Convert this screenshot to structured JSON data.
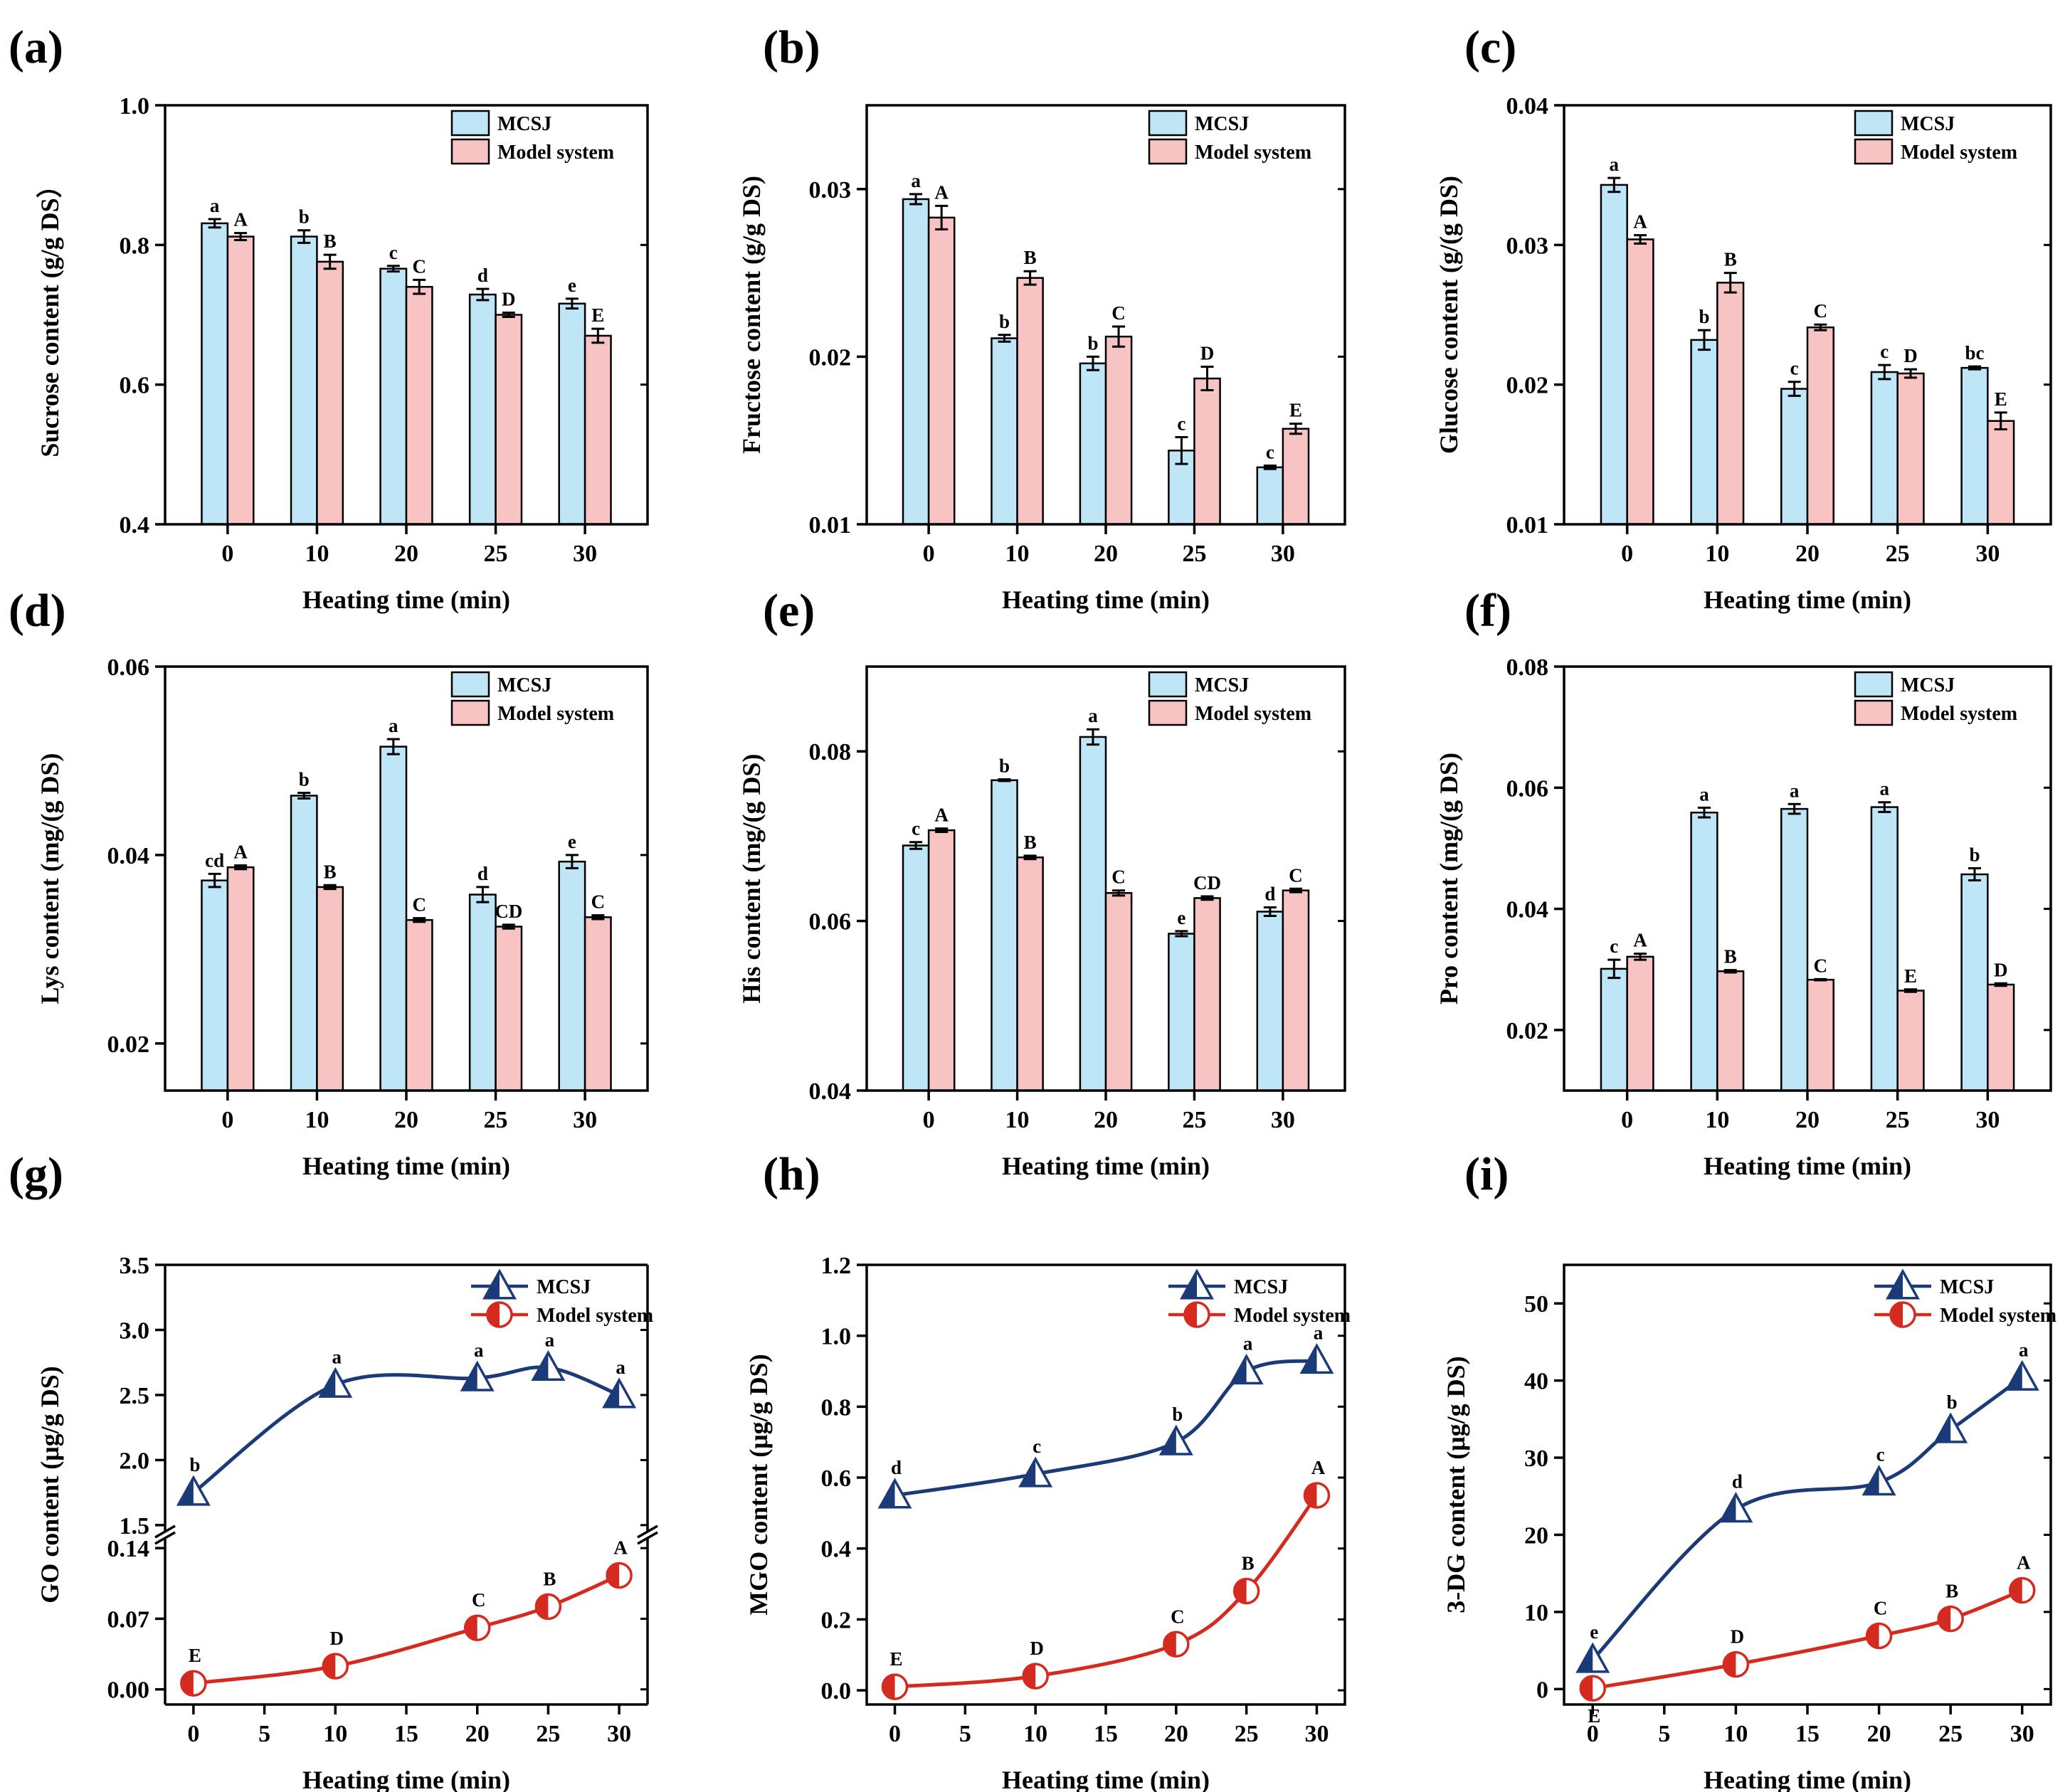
{
  "colors": {
    "mcsj_bar": "#bfe6f7",
    "model_bar": "#f7c3c3",
    "mcsj_line": "#1b3a78",
    "model_line": "#d42a1f"
  },
  "chart_data": [
    {
      "panel": "(a)",
      "type": "bar",
      "categories": [
        "0",
        "10",
        "20",
        "25",
        "30"
      ],
      "ylabel": "Sucrose content (g/g DS）",
      "xlabel": "Heating time (min)",
      "ylim": [
        0.4,
        1.0
      ],
      "yticks": [
        0.4,
        0.6,
        0.8,
        1.0
      ],
      "ytick_labels": [
        "0.4",
        "0.6",
        "0.8",
        "1.0"
      ],
      "legend": [
        "MCSJ",
        "Model system"
      ],
      "series": [
        {
          "name": "MCSJ",
          "values": [
            0.831,
            0.812,
            0.766,
            0.729,
            0.716
          ],
          "errors": [
            0.006,
            0.009,
            0.004,
            0.008,
            0.007
          ],
          "letters": [
            "a",
            "b",
            "c",
            "d",
            "e"
          ]
        },
        {
          "name": "Model system",
          "values": [
            0.812,
            0.776,
            0.74,
            0.7,
            0.67
          ],
          "errors": [
            0.005,
            0.01,
            0.01,
            0.003,
            0.01
          ],
          "letters": [
            "A",
            "B",
            "C",
            "D",
            "E"
          ]
        }
      ]
    },
    {
      "panel": "(b)",
      "type": "bar",
      "categories": [
        "0",
        "10",
        "20",
        "25",
        "30"
      ],
      "ylabel": "Fructose content (g/g DS)",
      "xlabel": "Heating time (min)",
      "ylim": [
        0.01,
        0.035
      ],
      "yticks": [
        0.01,
        0.02,
        0.03
      ],
      "ytick_labels": [
        "0.01",
        "0.02",
        "0.03"
      ],
      "legend": [
        "MCSJ",
        "Model system"
      ],
      "series": [
        {
          "name": "MCSJ",
          "values": [
            0.0294,
            0.0211,
            0.0196,
            0.0144,
            0.0134
          ],
          "errors": [
            0.0003,
            0.0002,
            0.0004,
            0.0008,
            0.0001
          ],
          "letters": [
            "a",
            "b",
            "b",
            "c",
            "c"
          ]
        },
        {
          "name": "Model system",
          "values": [
            0.0283,
            0.0247,
            0.0212,
            0.0187,
            0.0157
          ],
          "errors": [
            0.0007,
            0.0004,
            0.0006,
            0.0007,
            0.0003
          ],
          "letters": [
            "A",
            "B",
            "C",
            "D",
            "E"
          ]
        }
      ]
    },
    {
      "panel": "(c)",
      "type": "bar",
      "categories": [
        "0",
        "10",
        "20",
        "25",
        "30"
      ],
      "ylabel": "Glucose content (g/(g DS)",
      "xlabel": "Heating time (min)",
      "ylim": [
        0.01,
        0.04
      ],
      "yticks": [
        0.01,
        0.02,
        0.03,
        0.04
      ],
      "ytick_labels": [
        "0.01",
        "0.02",
        "0.03",
        "0.04"
      ],
      "legend": [
        "MCSJ",
        "Model system"
      ],
      "series": [
        {
          "name": "MCSJ",
          "values": [
            0.0343,
            0.0232,
            0.0197,
            0.0209,
            0.0212
          ],
          "errors": [
            0.0005,
            0.0007,
            0.0005,
            0.0005,
            0.0001
          ],
          "letters": [
            "a",
            "b",
            "c",
            "c",
            "bc"
          ]
        },
        {
          "name": "Model system",
          "values": [
            0.0304,
            0.0273,
            0.0241,
            0.0208,
            0.0174
          ],
          "errors": [
            0.0003,
            0.0007,
            0.0002,
            0.0003,
            0.0006
          ],
          "letters": [
            "A",
            "B",
            "C",
            "D",
            "E"
          ]
        }
      ]
    },
    {
      "panel": "(d)",
      "type": "bar",
      "categories": [
        "0",
        "10",
        "20",
        "25",
        "30"
      ],
      "ylabel": "Lys content (mg/(g DS)",
      "xlabel": "Heating time (min)",
      "ylim": [
        0.015,
        0.06
      ],
      "yticks": [
        0.02,
        0.04,
        0.06
      ],
      "ytick_labels": [
        "0.02",
        "0.04",
        "0.06"
      ],
      "legend": [
        "MCSJ",
        "Model system"
      ],
      "series": [
        {
          "name": "MCSJ",
          "values": [
            0.0373,
            0.0463,
            0.0515,
            0.0358,
            0.0393
          ],
          "errors": [
            0.0007,
            0.0003,
            0.0008,
            0.0008,
            0.0007
          ],
          "letters": [
            "cd",
            "b",
            "a",
            "d",
            "e"
          ]
        },
        {
          "name": "Model system",
          "values": [
            0.0387,
            0.0366,
            0.0331,
            0.0324,
            0.0334
          ],
          "errors": [
            0.0002,
            0.0002,
            0.0002,
            0.0002,
            0.0002
          ],
          "letters": [
            "A",
            "B",
            "C",
            "CD",
            "C"
          ]
        }
      ]
    },
    {
      "panel": "(e)",
      "type": "bar",
      "categories": [
        "0",
        "10",
        "20",
        "25",
        "30"
      ],
      "ylabel": "His content (mg/(g DS)",
      "xlabel": "Heating time (min)",
      "ylim": [
        0.04,
        0.09
      ],
      "yticks": [
        0.04,
        0.06,
        0.08
      ],
      "ytick_labels": [
        "0.04",
        "0.06",
        "0.08"
      ],
      "legend": [
        "MCSJ",
        "Model system"
      ],
      "series": [
        {
          "name": "MCSJ",
          "values": [
            0.0689,
            0.0766,
            0.0817,
            0.0585,
            0.0611
          ],
          "errors": [
            0.0004,
            0.0001,
            0.0009,
            0.0003,
            0.0005
          ],
          "letters": [
            "c",
            "b",
            "a",
            "e",
            "d"
          ]
        },
        {
          "name": "Model system",
          "values": [
            0.0707,
            0.0675,
            0.0633,
            0.0627,
            0.0636
          ],
          "errors": [
            0.0002,
            0.0002,
            0.0003,
            0.0002,
            0.0002
          ],
          "letters": [
            "A",
            "B",
            "C",
            "CD",
            "C"
          ]
        }
      ]
    },
    {
      "panel": "(f)",
      "type": "bar",
      "categories": [
        "0",
        "10",
        "20",
        "25",
        "30"
      ],
      "ylabel": "Pro content (mg/(g DS)",
      "xlabel": "Heating time (min)",
      "ylim": [
        0.01,
        0.08
      ],
      "yticks": [
        0.02,
        0.04,
        0.06,
        0.08
      ],
      "ytick_labels": [
        "0.02",
        "0.04",
        "0.06",
        "0.08"
      ],
      "legend": [
        "MCSJ",
        "Model system"
      ],
      "series": [
        {
          "name": "MCSJ",
          "values": [
            0.0301,
            0.0559,
            0.0565,
            0.0568,
            0.0457
          ],
          "errors": [
            0.0015,
            0.0008,
            0.0008,
            0.0008,
            0.001
          ],
          "letters": [
            "c",
            "a",
            "a",
            "a",
            "b"
          ]
        },
        {
          "name": "Model system",
          "values": [
            0.0321,
            0.0297,
            0.0283,
            0.0265,
            0.0275
          ],
          "errors": [
            0.0005,
            0.0002,
            0.0001,
            0.0002,
            0.0002
          ],
          "letters": [
            "A",
            "B",
            "C",
            "E",
            "D"
          ]
        }
      ]
    },
    {
      "panel": "(g)",
      "type": "line",
      "ylabel": "GO content (μg/g DS)",
      "xlabel": "Heating time (min)",
      "xlim": [
        -2,
        32
      ],
      "xticks": [
        0,
        5,
        10,
        15,
        20,
        25,
        30
      ],
      "xtick_labels": [
        "0",
        "5",
        "10",
        "15",
        "20",
        "25",
        "30"
      ],
      "broken_axis": true,
      "upper_ylim": [
        1.45,
        3.5
      ],
      "upper_yticks": [
        1.5,
        2.0,
        2.5,
        3.0,
        3.5
      ],
      "upper_ytick_labels": [
        "1.5",
        "2.0",
        "2.5",
        "3.0",
        "3.5"
      ],
      "lower_ylim": [
        -0.015,
        0.15
      ],
      "lower_yticks": [
        0.0,
        0.07,
        0.14
      ],
      "lower_ytick_labels": [
        "0.00",
        "0.07",
        "0.14"
      ],
      "legend": [
        "MCSJ",
        "Model system"
      ],
      "series": [
        {
          "name": "MCSJ",
          "x": [
            0,
            10,
            20,
            25,
            30
          ],
          "values": [
            1.75,
            2.58,
            2.63,
            2.71,
            2.5
          ],
          "letters": [
            "b",
            "a",
            "a",
            "a",
            "a"
          ]
        },
        {
          "name": "Model system",
          "x": [
            0,
            10,
            20,
            25,
            30
          ],
          "values": [
            0.006,
            0.023,
            0.061,
            0.082,
            0.113
          ],
          "letters": [
            "E",
            "D",
            "C",
            "B",
            "A"
          ]
        }
      ]
    },
    {
      "panel": "(h)",
      "type": "line",
      "ylabel": "MGO content  (μg/g DS)",
      "xlabel": "Heating time (min)",
      "xlim": [
        -2,
        32
      ],
      "xticks": [
        0,
        5,
        10,
        15,
        20,
        25,
        30
      ],
      "xtick_labels": [
        "0",
        "5",
        "10",
        "15",
        "20",
        "25",
        "30"
      ],
      "ylim": [
        -0.04,
        1.2
      ],
      "yticks": [
        0,
        0.2,
        0.4,
        0.6,
        0.8,
        1.0,
        1.2
      ],
      "ytick_labels": [
        "0.0",
        "0.2",
        "0.4",
        "0.6",
        "0.8",
        "1.0",
        "1.2"
      ],
      "legend": [
        "MCSJ",
        "Model system"
      ],
      "series": [
        {
          "name": "MCSJ",
          "x": [
            0,
            10,
            20,
            25,
            30
          ],
          "values": [
            0.55,
            0.61,
            0.7,
            0.9,
            0.93
          ],
          "letters": [
            "d",
            "c",
            "b",
            "a",
            "a"
          ]
        },
        {
          "name": "Model system",
          "x": [
            0,
            10,
            20,
            25,
            30
          ],
          "values": [
            0.01,
            0.04,
            0.13,
            0.28,
            0.55
          ],
          "letters": [
            "E",
            "D",
            "C",
            "B",
            "A"
          ]
        }
      ]
    },
    {
      "panel": "(i)",
      "type": "line",
      "ylabel": "3-DG content  (μg/g DS)",
      "xlabel": "Heating time (min)",
      "xlim": [
        -2,
        32
      ],
      "xticks": [
        0,
        5,
        10,
        15,
        20,
        25,
        30
      ],
      "xtick_labels": [
        "0",
        "5",
        "10",
        "15",
        "20",
        "25",
        "30"
      ],
      "ylim": [
        -2,
        55
      ],
      "yticks": [
        0,
        10,
        20,
        30,
        40,
        50
      ],
      "ytick_labels": [
        "0",
        "10",
        "20",
        "30",
        "40",
        "50"
      ],
      "legend": [
        "MCSJ",
        "Model system"
      ],
      "series": [
        {
          "name": "MCSJ",
          "x": [
            0,
            10,
            20,
            25,
            30
          ],
          "values": [
            3.8,
            23.3,
            26.8,
            33.6,
            40.4
          ],
          "letters": [
            "e",
            "d",
            "c",
            "b",
            "a"
          ]
        },
        {
          "name": "Model system",
          "x": [
            0,
            10,
            20,
            25,
            30
          ],
          "values": [
            0.1,
            3.2,
            6.9,
            9.1,
            12.8
          ],
          "letters": [
            "E",
            "D",
            "C",
            "B",
            "A"
          ]
        }
      ]
    }
  ]
}
